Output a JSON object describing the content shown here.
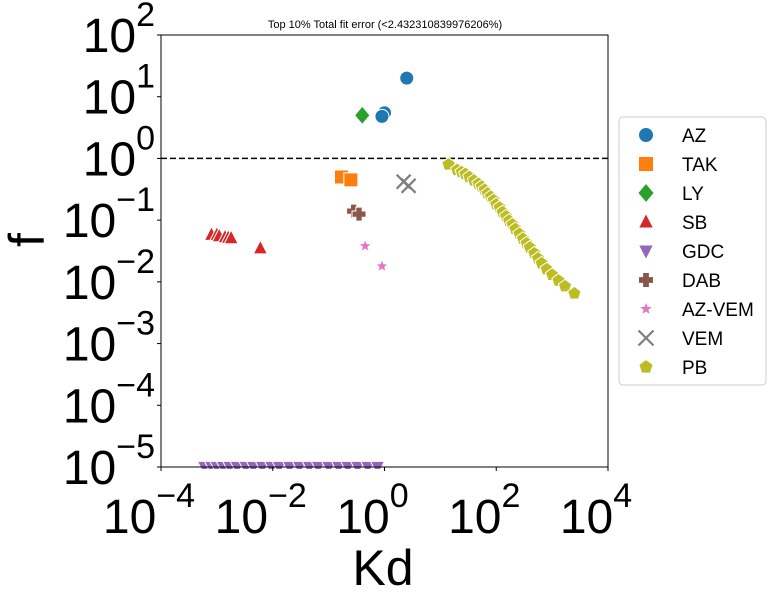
{
  "chart_data": {
    "type": "scatter",
    "title": "Top 10% Total fit error (<2.432310839976206%)",
    "xlabel": "Kd",
    "ylabel": "f",
    "xscale": "log",
    "yscale": "log",
    "xlim": [
      0.0001,
      10000
    ],
    "ylim": [
      1e-05,
      100
    ],
    "x_ticks": [
      {
        "base": "10",
        "exp": "−4"
      },
      {
        "base": "10",
        "exp": "−2"
      },
      {
        "base": "10",
        "exp": "0"
      },
      {
        "base": "10",
        "exp": "2"
      },
      {
        "base": "10",
        "exp": "4"
      }
    ],
    "y_ticks": [
      {
        "base": "10",
        "exp": "−5"
      },
      {
        "base": "10",
        "exp": "−4"
      },
      {
        "base": "10",
        "exp": "−3"
      },
      {
        "base": "10",
        "exp": "−2"
      },
      {
        "base": "10",
        "exp": "−1"
      },
      {
        "base": "10",
        "exp": "0"
      },
      {
        "base": "10",
        "exp": "1"
      },
      {
        "base": "10",
        "exp": "2"
      }
    ],
    "hline": {
      "y": 1,
      "style": "dashed",
      "color": "#000000"
    },
    "grid": false,
    "legend_position": "outside-right",
    "series": [
      {
        "name": "AZ",
        "marker": "circle",
        "color": "#1f77b4",
        "points": [
          [
            2.5,
            20
          ],
          [
            1.0,
            5.5
          ],
          [
            0.9,
            4.8
          ]
        ]
      },
      {
        "name": "TAK",
        "marker": "square",
        "color": "#ff7f0e",
        "points": [
          [
            0.17,
            0.5
          ],
          [
            0.25,
            0.45
          ]
        ]
      },
      {
        "name": "LY",
        "marker": "diamond",
        "color": "#2ca02c",
        "points": [
          [
            0.4,
            5
          ]
        ]
      },
      {
        "name": "SB",
        "marker": "triangle-up",
        "color": "#d62728",
        "points": [
          [
            0.0008,
            0.058
          ],
          [
            0.001,
            0.058
          ],
          [
            0.0011,
            0.055
          ],
          [
            0.0014,
            0.053
          ],
          [
            0.0016,
            0.052
          ],
          [
            0.0018,
            0.051
          ],
          [
            0.006,
            0.035
          ]
        ]
      },
      {
        "name": "GDC",
        "marker": "triangle-down",
        "color": "#9467bd",
        "points": [
          [
            0.0006,
            1e-05
          ],
          [
            0.0008,
            1e-05
          ],
          [
            0.001,
            1e-05
          ],
          [
            0.0013,
            1e-05
          ],
          [
            0.0017,
            1e-05
          ],
          [
            0.0023,
            1e-05
          ],
          [
            0.0033,
            1e-05
          ],
          [
            0.0045,
            1e-05
          ],
          [
            0.0065,
            1e-05
          ],
          [
            0.0095,
            1e-05
          ],
          [
            0.013,
            1e-05
          ],
          [
            0.02,
            1e-05
          ],
          [
            0.03,
            1e-05
          ],
          [
            0.045,
            1e-05
          ],
          [
            0.065,
            1e-05
          ],
          [
            0.1,
            1e-05
          ],
          [
            0.15,
            1e-05
          ],
          [
            0.22,
            1e-05
          ],
          [
            0.33,
            1e-05
          ],
          [
            0.5,
            1e-05
          ],
          [
            0.75,
            1e-05
          ]
        ]
      },
      {
        "name": "DAB",
        "marker": "plus",
        "color": "#8c564b",
        "points": [
          [
            0.28,
            0.14
          ],
          [
            0.35,
            0.125
          ]
        ]
      },
      {
        "name": "AZ-VEM",
        "marker": "star",
        "color": "#e377c2",
        "points": [
          [
            0.45,
            0.038
          ],
          [
            0.9,
            0.018
          ]
        ]
      },
      {
        "name": "VEM",
        "marker": "x",
        "color": "#7f7f7f",
        "points": [
          [
            2.2,
            0.42
          ],
          [
            2.7,
            0.36
          ]
        ]
      },
      {
        "name": "PB",
        "marker": "pentagon",
        "color": "#bcbd22",
        "points": [
          [
            14,
            0.8
          ],
          [
            20,
            0.65
          ],
          [
            24,
            0.6
          ],
          [
            28,
            0.56
          ],
          [
            33,
            0.5
          ],
          [
            40,
            0.44
          ],
          [
            48,
            0.39
          ],
          [
            55,
            0.35
          ],
          [
            62,
            0.31
          ],
          [
            70,
            0.27
          ],
          [
            80,
            0.24
          ],
          [
            90,
            0.21
          ],
          [
            100,
            0.18
          ],
          [
            115,
            0.16
          ],
          [
            130,
            0.135
          ],
          [
            150,
            0.115
          ],
          [
            170,
            0.098
          ],
          [
            195,
            0.085
          ],
          [
            220,
            0.072
          ],
          [
            260,
            0.06
          ],
          [
            300,
            0.05
          ],
          [
            350,
            0.042
          ],
          [
            400,
            0.036
          ],
          [
            480,
            0.029
          ],
          [
            560,
            0.024
          ],
          [
            650,
            0.02
          ],
          [
            800,
            0.016
          ],
          [
            1000,
            0.013
          ],
          [
            1300,
            0.0105
          ],
          [
            1700,
            0.0085
          ],
          [
            2500,
            0.0065
          ]
        ]
      }
    ]
  }
}
